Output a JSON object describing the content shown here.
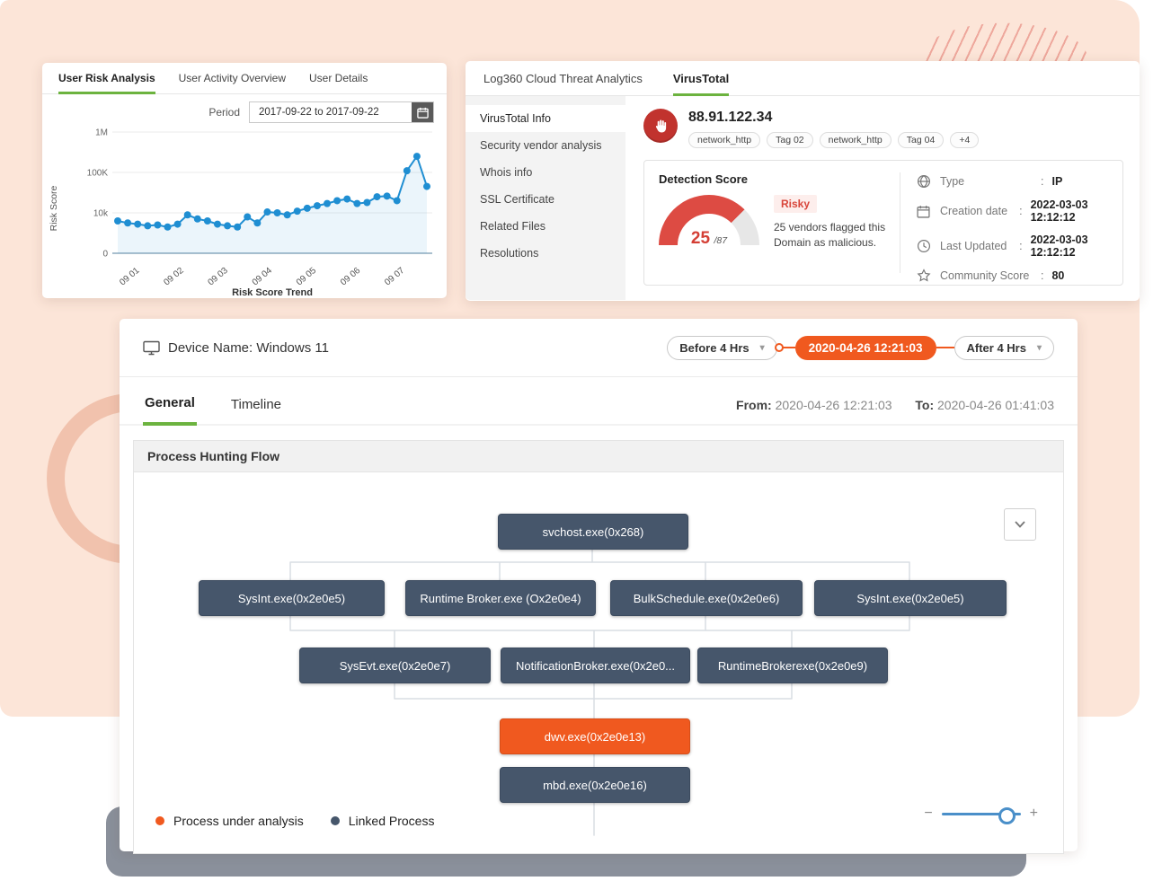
{
  "colors": {
    "accent_green": "#6cb33f",
    "accent_orange": "#f0591f",
    "node_slate": "#46566b",
    "chart_blue": "#1f8ed2",
    "risk_red": "#d8453a"
  },
  "risk_panel": {
    "tabs": [
      {
        "label": "User Risk Analysis",
        "active": true
      },
      {
        "label": "User Activity Overview",
        "active": false
      },
      {
        "label": "User Details",
        "active": false
      }
    ],
    "period_label": "Period",
    "period_value": "2017-09-22  to  2017-09-22"
  },
  "chart_data": {
    "type": "line",
    "title": "Risk Score Trend",
    "xlabel": "",
    "ylabel": "Risk Score",
    "scale": "log",
    "ylim": [
      0,
      1000000
    ],
    "yticks": [
      "0",
      "10k",
      "100K",
      "1M"
    ],
    "x_ticklabels": [
      "09 01",
      "09 02",
      "09 03",
      "09 04",
      "09 05",
      "09 06",
      "09 07"
    ],
    "grid": true,
    "values": [
      8000,
      7500,
      7200,
      6800,
      7000,
      6500,
      7200,
      9500,
      8500,
      8000,
      7200,
      6800,
      6500,
      9000,
      7500,
      10500,
      10000,
      9500,
      11000,
      13000,
      15000,
      17000,
      20000,
      22000,
      17000,
      18000,
      25000,
      26000,
      20000,
      110000,
      250000,
      45000
    ]
  },
  "vt_panel": {
    "tabs": [
      {
        "label": "Log360 Cloud Threat Analytics",
        "active": false
      },
      {
        "label": "VirusTotal",
        "active": true
      }
    ],
    "sidebar_items": [
      "VirusTotal Info",
      "Security vendor analysis",
      "Whois info",
      "SSL Certificate",
      "Related Files",
      "Resolutions"
    ],
    "ip_address": "88.91.122.34",
    "tags": [
      "network_http",
      "Tag 02",
      "network_http",
      "Tag 04",
      "+4"
    ],
    "detection": {
      "title": "Detection Score",
      "score": "25",
      "score_total": "/87",
      "badge": "Risky",
      "description_line1": "25 vendors flagged this",
      "description_line2": "Domain as malicious."
    },
    "details": [
      {
        "icon": "globe-icon",
        "label": "Type",
        "colon": ":",
        "value": "IP"
      },
      {
        "icon": "calendar-icon",
        "label": "Creation date",
        "colon": ":",
        "value": "2022-03-03 12:12:12"
      },
      {
        "icon": "clock-icon",
        "label": "Last Updated",
        "colon": ":",
        "value": "2022-03-03 12:12:12"
      },
      {
        "icon": "star-icon",
        "label": "Community Score",
        "colon": ":",
        "value": "80"
      }
    ]
  },
  "device_panel": {
    "device_label": "Device Name: Windows 11",
    "before_button": "Before 4 Hrs",
    "timestamp": "2020-04-26  12:21:03",
    "after_button": "After 4 Hrs",
    "tabs": [
      {
        "label": "General",
        "active": true
      },
      {
        "label": "Timeline",
        "active": false
      }
    ],
    "from_label": "From:",
    "from_value": "2020-04-26  12:21:03",
    "to_label": "To:",
    "to_value": "2020-04-26  01:41:03",
    "section_title": "Process Hunting Flow",
    "legend": [
      {
        "label": "Process under analysis",
        "type": "analysis"
      },
      {
        "label": "Linked Process",
        "type": "linked"
      }
    ],
    "nodes": [
      {
        "id": "svchost",
        "label": "svchost.exe(0x268)",
        "type": "linked"
      },
      {
        "id": "sysint1",
        "label": "SysInt.exe(0x2e0e5)",
        "type": "linked"
      },
      {
        "id": "runtime",
        "label": "Runtime Broker.exe (Ox2e0e4)",
        "type": "linked"
      },
      {
        "id": "bulk",
        "label": "BulkSchedule.exe(0x2e0e6)",
        "type": "linked"
      },
      {
        "id": "sysint2",
        "label": "SysInt.exe(0x2e0e5)",
        "type": "linked"
      },
      {
        "id": "sysevt",
        "label": "SysEvt.exe(0x2e0e7)",
        "type": "linked"
      },
      {
        "id": "notif",
        "label": "NotificationBroker.exe(0x2e0...",
        "type": "linked"
      },
      {
        "id": "runtime9",
        "label": "RuntimeBrokerexe(0x2e0e9)",
        "type": "linked"
      },
      {
        "id": "dwv",
        "label": "dwv.exe(0x2e0e13)",
        "type": "analysis"
      },
      {
        "id": "mbd",
        "label": "mbd.exe(0x2e0e16)",
        "type": "linked"
      }
    ]
  }
}
